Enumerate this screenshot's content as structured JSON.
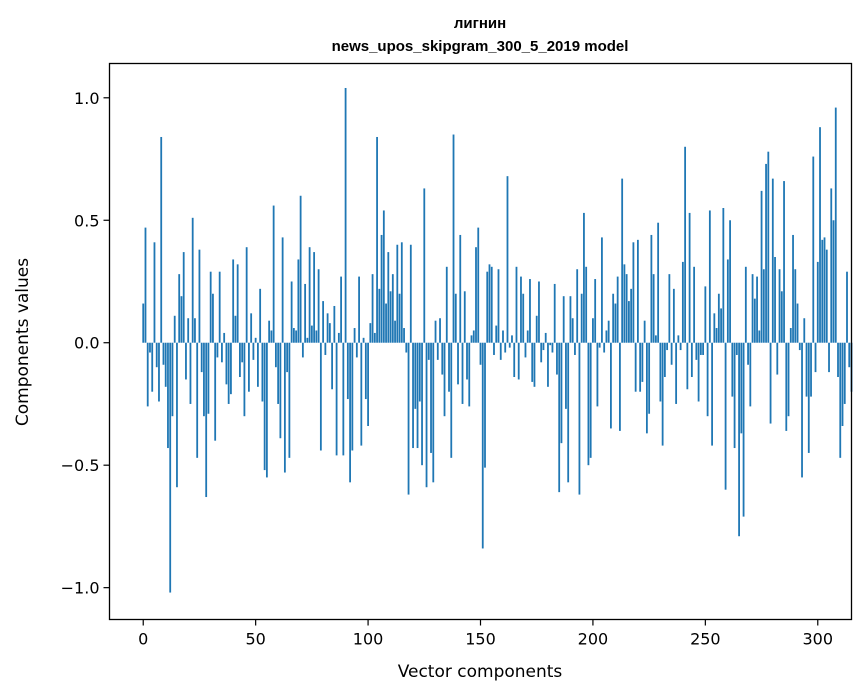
{
  "chart_data": {
    "type": "bar",
    "title": "лигнин",
    "subtitle": "news_upos_skipgram_300_5_2019 model",
    "xlabel": "Vector components",
    "ylabel": "Components values",
    "xlim": [
      -15,
      315
    ],
    "ylim": [
      -1.13,
      1.14
    ],
    "xticks": [
      0,
      50,
      100,
      150,
      200,
      250,
      300
    ],
    "xtick_labels": [
      "0",
      "50",
      "100",
      "150",
      "200",
      "250",
      "300"
    ],
    "yticks": [
      1.0,
      0.5,
      0.0,
      -0.5,
      -1.0
    ],
    "ytick_labels": [
      "1.0",
      "0.5",
      "0.0",
      "−0.5",
      "−1.0"
    ],
    "grid": false,
    "bar_color": "#1f77b4",
    "series": [
      {
        "values": [
          0.16,
          0.47,
          -0.26,
          -0.04,
          -0.2,
          0.41,
          -0.1,
          -0.24,
          0.84,
          -0.09,
          -0.18,
          -0.43,
          -1.02,
          -0.3,
          0.11,
          -0.59,
          0.28,
          0.19,
          0.37,
          -0.15,
          0.1,
          -0.25,
          0.51,
          0.1,
          -0.47,
          0.38,
          -0.12,
          -0.3,
          -0.63,
          -0.29,
          0.29,
          0.2,
          -0.4,
          -0.06,
          0.29,
          -0.08,
          0.04,
          -0.17,
          -0.25,
          -0.21,
          0.34,
          0.11,
          0.32,
          -0.14,
          -0.08,
          -0.3,
          0.39,
          -0.2,
          0.12,
          -0.07,
          0.02,
          -0.18,
          0.22,
          -0.24,
          -0.52,
          -0.55,
          0.09,
          0.05,
          0.56,
          -0.1,
          -0.25,
          -0.39,
          0.43,
          -0.53,
          -0.12,
          -0.47,
          0.25,
          0.06,
          0.05,
          0.34,
          0.6,
          -0.06,
          0.24,
          0.02,
          0.39,
          0.07,
          0.37,
          0.05,
          0.3,
          -0.44,
          0.17,
          -0.05,
          0.12,
          0.08,
          -0.19,
          0.15,
          -0.46,
          0.04,
          0.27,
          -0.46,
          1.04,
          -0.23,
          -0.57,
          -0.44,
          0.06,
          -0.06,
          0.27,
          -0.42,
          0.02,
          -0.23,
          -0.34,
          0.08,
          0.28,
          0.04,
          0.84,
          0.22,
          0.44,
          0.54,
          0.16,
          0.37,
          0.21,
          0.28,
          0.09,
          0.4,
          0.2,
          0.41,
          0.06,
          -0.04,
          -0.62,
          0.4,
          -0.43,
          -0.27,
          -0.43,
          -0.24,
          -0.5,
          0.63,
          -0.59,
          -0.07,
          -0.45,
          -0.57,
          0.09,
          -0.07,
          0.1,
          -0.13,
          -0.3,
          0.31,
          -0.2,
          -0.47,
          0.85,
          0.2,
          -0.17,
          0.44,
          -0.25,
          0.21,
          -0.15,
          -0.26,
          0.03,
          0.05,
          0.39,
          0.47,
          -0.09,
          -0.84,
          -0.51,
          0.29,
          0.32,
          0.31,
          -0.05,
          0.07,
          0.3,
          -0.07,
          0.05,
          -0.04,
          0.68,
          -0.02,
          0.03,
          -0.14,
          0.31,
          -0.15,
          0.27,
          0.2,
          -0.06,
          0.05,
          0.26,
          -0.16,
          -0.18,
          0.11,
          0.25,
          -0.08,
          -0.03,
          0.04,
          -0.18,
          -0.01,
          -0.04,
          0.24,
          -0.13,
          -0.61,
          -0.41,
          0.19,
          -0.27,
          -0.57,
          0.19,
          0.1,
          -0.05,
          0.3,
          -0.62,
          0.2,
          0.53,
          0.31,
          -0.5,
          -0.47,
          0.1,
          0.26,
          -0.26,
          -0.02,
          0.43,
          -0.04,
          0.05,
          0.09,
          -0.35,
          0.2,
          0.16,
          0.27,
          -0.36,
          0.67,
          0.32,
          0.28,
          0.17,
          0.22,
          0.41,
          -0.2,
          0.42,
          -0.2,
          -0.16,
          0.09,
          -0.37,
          -0.29,
          0.44,
          0.28,
          0.03,
          0.49,
          -0.24,
          -0.42,
          -0.14,
          -0.03,
          0.28,
          -0.09,
          0.22,
          -0.25,
          0.03,
          -0.03,
          0.33,
          0.8,
          -0.19,
          0.53,
          -0.14,
          0.31,
          -0.07,
          -0.24,
          -0.05,
          -0.05,
          0.23,
          -0.3,
          0.54,
          -0.42,
          0.12,
          0.06,
          0.2,
          0.14,
          0.55,
          -0.6,
          0.34,
          0.5,
          -0.22,
          -0.43,
          -0.05,
          -0.79,
          -0.37,
          -0.71,
          0.31,
          -0.09,
          -0.26,
          0.28,
          0.18,
          0.27,
          0.05,
          0.62,
          0.3,
          0.73,
          0.78,
          -0.33,
          0.67,
          0.35,
          -0.13,
          0.3,
          0.21,
          0.66,
          -0.36,
          -0.3,
          0.06,
          0.44,
          0.3,
          0.16,
          -0.03,
          -0.55,
          0.1,
          -0.22,
          -0.45,
          -0.22,
          0.76,
          -0.12,
          0.33,
          0.88,
          0.42,
          0.43,
          0.38,
          -0.12,
          0.63,
          0.5,
          0.96,
          -0.14,
          -0.47,
          -0.34,
          -0.25,
          0.29,
          -0.1,
          -0.2
        ]
      }
    ]
  }
}
